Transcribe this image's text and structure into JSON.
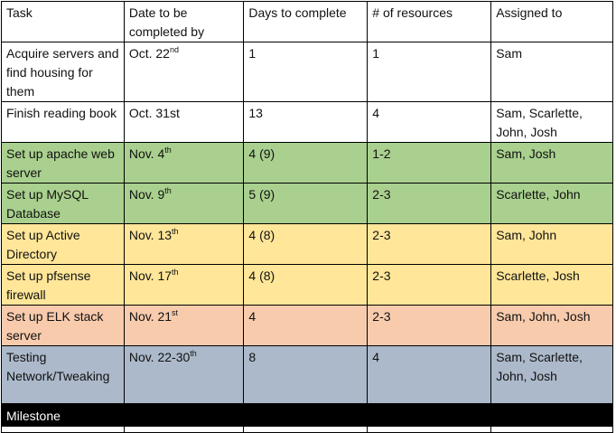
{
  "colors": {
    "green": "#a9d08e",
    "yellow": "#ffe699",
    "salmon": "#f8cbad",
    "blue": "#acb9ca",
    "white": "#ffffff",
    "milestone_bg": "#000000"
  },
  "table": {
    "headers": [
      "Task",
      "Date to be completed by",
      "Days to complete",
      "# of resources",
      "Assigned to"
    ],
    "rows": [
      {
        "task": "Acquire servers and find housing for them",
        "date": "Oct. 22",
        "date_sup": "nd",
        "days": "1",
        "resources": "1",
        "assigned": "Sam",
        "color": "white"
      },
      {
        "task": "Finish reading book",
        "date": "Oct. 31st",
        "date_sup": "",
        "days": "13",
        "resources": "4",
        "assigned": "Sam, Scarlette, John, Josh",
        "color": "white"
      },
      {
        "task": "Set up apache web server",
        "date": "Nov. 4",
        "date_sup": "th",
        "days": "4 (9)",
        "resources": "1-2",
        "assigned": "Sam, Josh",
        "color": "green"
      },
      {
        "task": "Set up MySQL Database",
        "date": "Nov. 9",
        "date_sup": "th",
        "days": "5 (9)",
        "resources": "2-3",
        "assigned": "Scarlette, John",
        "color": "green"
      },
      {
        "task": "Set up Active Directory",
        "date": "Nov. 13",
        "date_sup": "th",
        "days": "4 (8)",
        "resources": "2-3",
        "assigned": "Sam, John",
        "color": "yellow"
      },
      {
        "task": "Set up pfsense firewall",
        "date": "Nov. 17",
        "date_sup": "th",
        "days": "4 (8)",
        "resources": "2-3",
        "assigned": "Scarlette, Josh",
        "color": "yellow"
      },
      {
        "task": "Set up ELK stack server",
        "date": "Nov. 21",
        "date_sup": "st",
        "days": "4",
        "resources": "2-3",
        "assigned": "Sam, John, Josh",
        "color": "salmon"
      },
      {
        "task": "Testing Network/Tweaking",
        "date": "Nov. 22-30",
        "date_sup": "th",
        "days": "8",
        "resources": "4",
        "assigned": "Sam, Scarlette, John, Josh",
        "color": "blue"
      }
    ],
    "milestone_label": "Milestone"
  }
}
